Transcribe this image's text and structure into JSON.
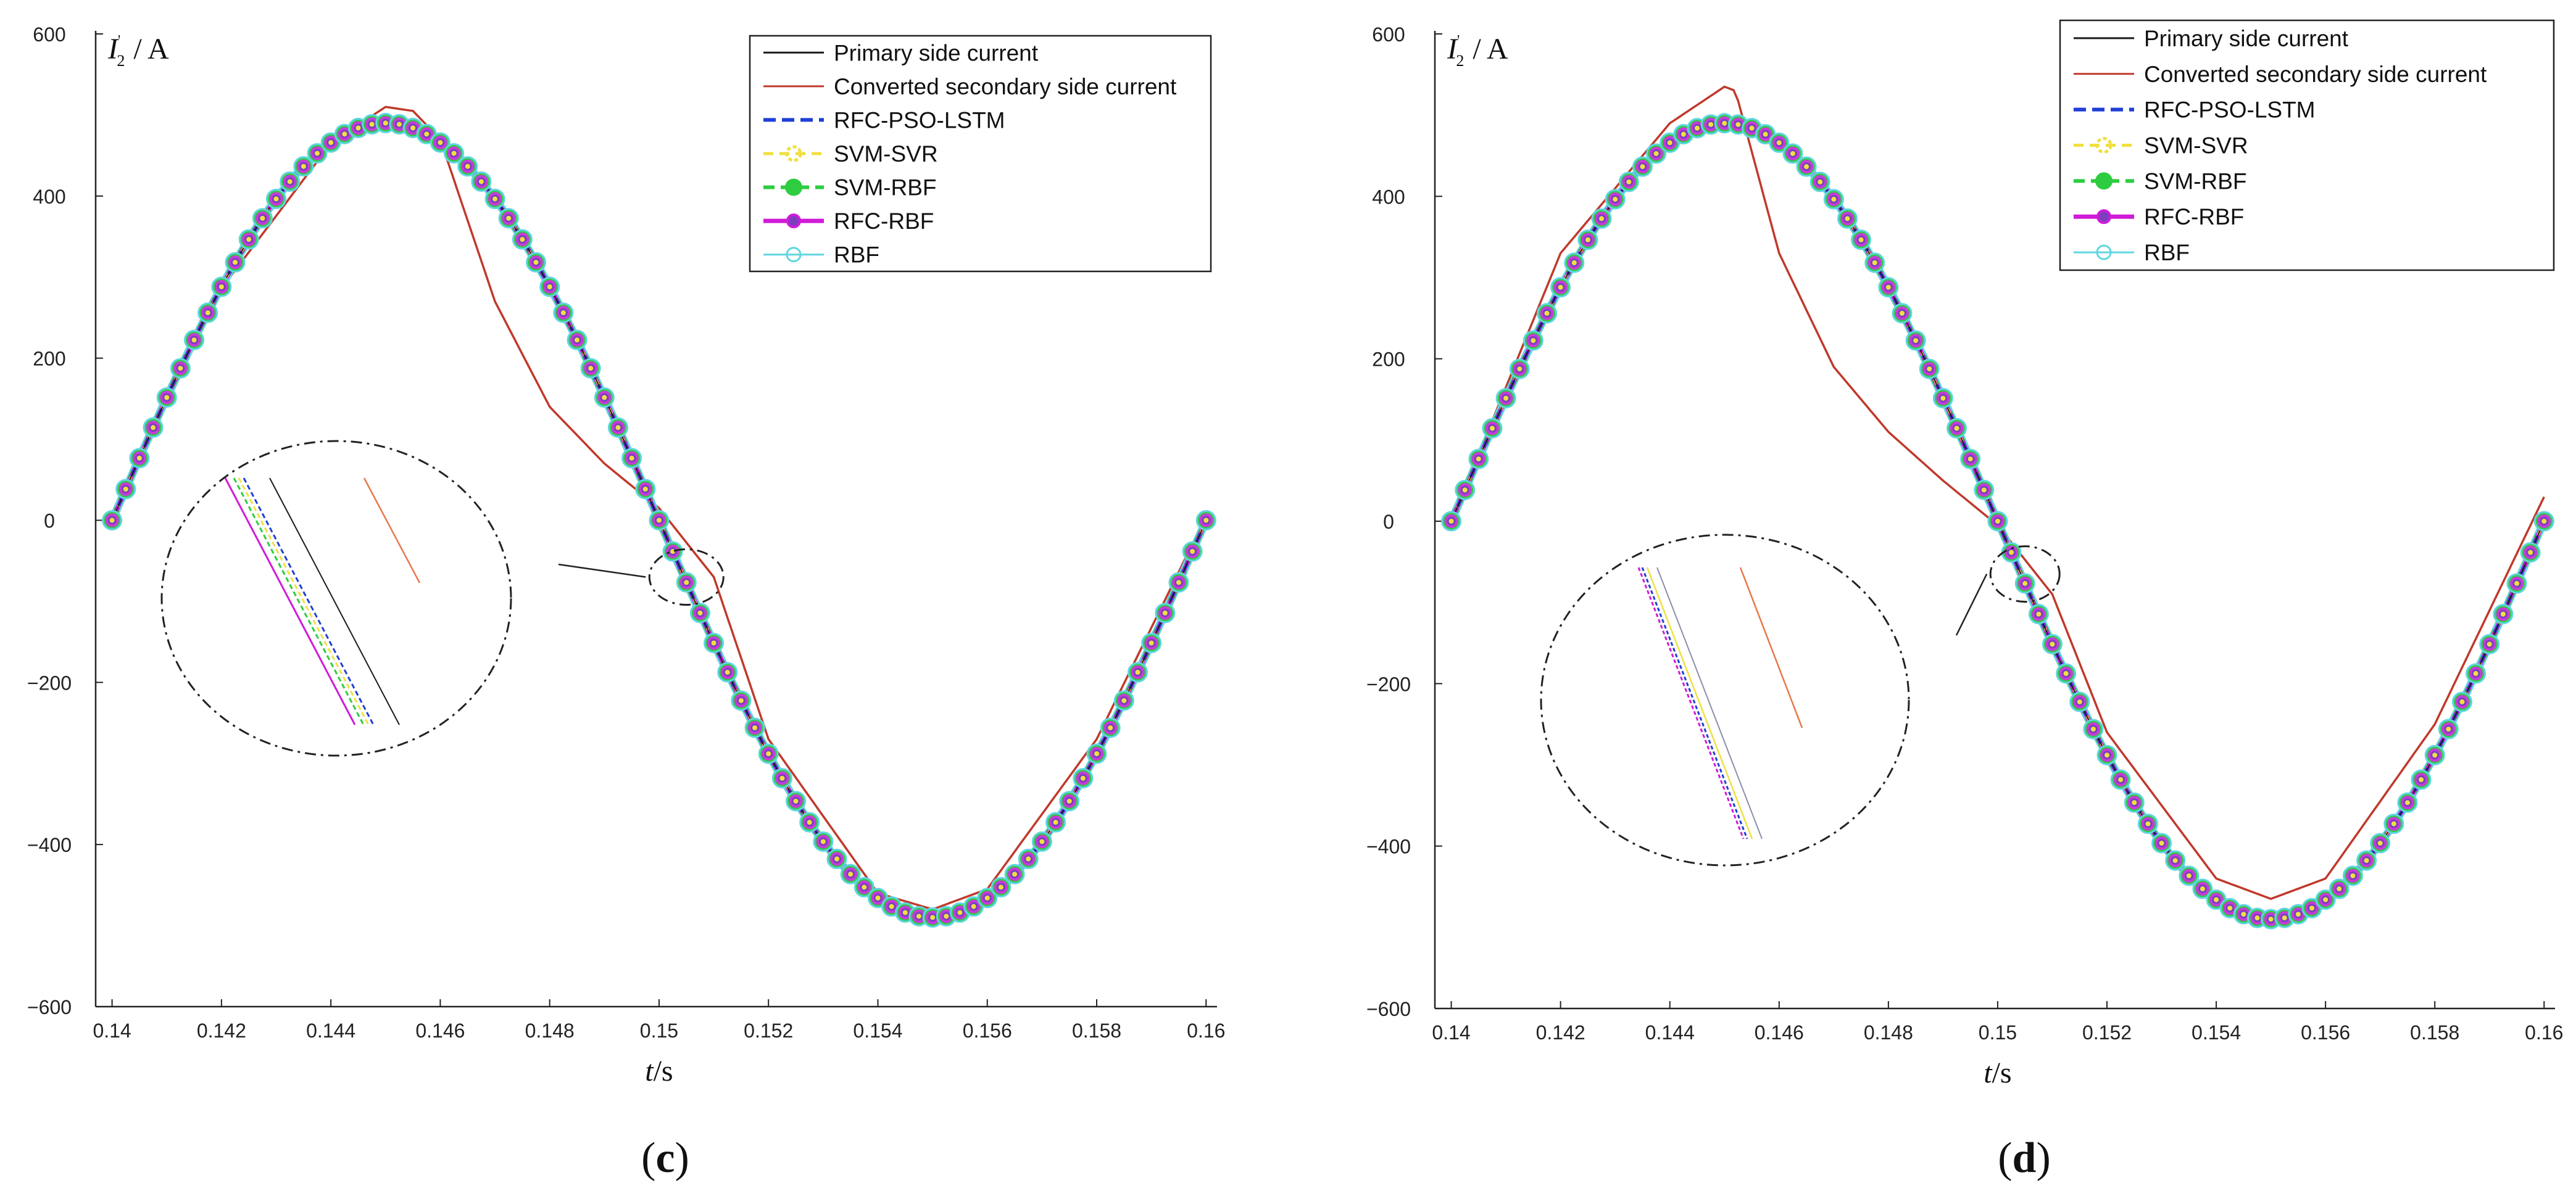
{
  "figure": {
    "panels": [
      {
        "label_open": "(",
        "label_letter": "c",
        "label_close": ")"
      },
      {
        "label_open": "(",
        "label_letter": "d",
        "label_close": ")"
      }
    ]
  },
  "chart_data": [
    {
      "type": "line",
      "panel": "c",
      "xlabel_var": "t",
      "xlabel_unit": "/s",
      "ylabel_var": "I",
      "ylabel_sub": "2",
      "ylabel_sup": "'",
      "ylabel_unit": "/ A",
      "xlim": [
        0.1397,
        0.1602
      ],
      "ylim": [
        -600,
        600
      ],
      "x_ticks": [
        0.14,
        0.142,
        0.144,
        0.146,
        0.148,
        0.15,
        0.152,
        0.154,
        0.156,
        0.158,
        0.16
      ],
      "x_tick_labels": [
        "0.14",
        "0.142",
        "0.144",
        "0.146",
        "0.148",
        "0.15",
        "0.152",
        "0.154",
        "0.156",
        "0.158",
        "0.16"
      ],
      "y_ticks": [
        -600,
        -400,
        -200,
        0,
        200,
        400,
        600
      ],
      "y_tick_labels": [
        "−600",
        "−400",
        "−200",
        "0",
        "200",
        "400",
        "600"
      ],
      "legend": [
        "Primary side current",
        "Converted secondary side current",
        "RFC-PSO-LSTM",
        "SVM-SVR",
        "SVM-RBF",
        "RFC-RBF",
        "RBF"
      ],
      "legend_position": "top-right",
      "series": [
        {
          "name": "Primary side current",
          "color": "#1a1a1a",
          "x": [
            0.14,
            0.1425,
            0.145,
            0.1475,
            0.15,
            0.1525,
            0.155,
            0.1575,
            0.16
          ],
          "values": [
            0,
            347,
            490,
            347,
            0,
            -347,
            -490,
            -347,
            0
          ]
        },
        {
          "name": "Converted secondary side current",
          "color": "#c0392b",
          "x": [
            0.14,
            0.142,
            0.144,
            0.145,
            0.1455,
            0.146,
            0.147,
            0.148,
            0.149,
            0.15,
            0.151,
            0.152,
            0.154,
            0.155,
            0.156,
            0.158,
            0.16
          ],
          "values": [
            0,
            286,
            465,
            510,
            505,
            470,
            270,
            140,
            70,
            15,
            -70,
            -270,
            -460,
            -480,
            -455,
            -270,
            5
          ]
        },
        {
          "name": "RFC-PSO-LSTM",
          "color": "#1f3fd6",
          "x": [
            0.14,
            0.1425,
            0.145,
            0.1475,
            0.15,
            0.1525,
            0.155,
            0.1575,
            0.16
          ],
          "values": [
            0,
            347,
            490,
            347,
            0,
            -347,
            -490,
            -347,
            0
          ]
        },
        {
          "name": "SVM-SVR",
          "color": "#f0e040",
          "x": [
            0.14,
            0.1425,
            0.145,
            0.1475,
            0.15,
            0.1525,
            0.155,
            0.1575,
            0.16
          ],
          "values": [
            0,
            347,
            490,
            347,
            0,
            -347,
            -490,
            -347,
            0
          ]
        },
        {
          "name": "SVM-RBF",
          "color": "#2ecc40",
          "x": [
            0.14,
            0.1425,
            0.145,
            0.1475,
            0.15,
            0.1525,
            0.155,
            0.1575,
            0.16
          ],
          "values": [
            0,
            347,
            490,
            347,
            0,
            -347,
            -490,
            -347,
            0
          ]
        },
        {
          "name": "RFC-RBF",
          "color": "#d01bd8",
          "x": [
            0.14,
            0.1425,
            0.145,
            0.1475,
            0.15,
            0.1525,
            0.155,
            0.1575,
            0.16
          ],
          "values": [
            0,
            347,
            490,
            347,
            0,
            -347,
            -490,
            -347,
            0
          ]
        },
        {
          "name": "RBF",
          "color": "#5fd6e0",
          "x": [
            0.14,
            0.1425,
            0.145,
            0.1475,
            0.15,
            0.1525,
            0.155,
            0.1575,
            0.16
          ],
          "values": [
            0,
            347,
            490,
            347,
            0,
            -347,
            -490,
            -347,
            0
          ]
        }
      ],
      "annotations": [
        {
          "type": "zoom-inset",
          "target": [
            0.1505,
            -70
          ],
          "inset_position": "left-middle"
        }
      ]
    },
    {
      "type": "line",
      "panel": "d",
      "xlabel_var": "t",
      "xlabel_unit": "/s",
      "ylabel_var": "I",
      "ylabel_sub": "2",
      "ylabel_sup": "'",
      "ylabel_unit": "/ A",
      "xlim": [
        0.1397,
        0.1602
      ],
      "ylim": [
        -600,
        600
      ],
      "x_ticks": [
        0.14,
        0.142,
        0.144,
        0.146,
        0.148,
        0.15,
        0.152,
        0.154,
        0.156,
        0.158,
        0.16
      ],
      "x_tick_labels": [
        "0.14",
        "0.142",
        "0.144",
        "0.146",
        "0.148",
        "0.15",
        "0.152",
        "0.154",
        "0.156",
        "0.158",
        "0.16"
      ],
      "y_ticks": [
        -600,
        -400,
        -200,
        0,
        200,
        400,
        600
      ],
      "y_tick_labels": [
        "−600",
        "−400",
        "−200",
        "0",
        "200",
        "400",
        "600"
      ],
      "legend": [
        "Primary side current",
        "Converted secondary side current",
        "RFC-PSO-LSTM",
        "SVM-SVR",
        "SVM-RBF",
        "RFC-RBF",
        "RBF"
      ],
      "legend_position": "top-right",
      "series": [
        {
          "name": "Primary side current",
          "color": "#1a1a1a",
          "x": [
            0.14,
            0.1425,
            0.145,
            0.1475,
            0.15,
            0.1525,
            0.155,
            0.1575,
            0.16
          ],
          "values": [
            0,
            347,
            490,
            347,
            0,
            -347,
            -490,
            -347,
            0
          ]
        },
        {
          "name": "Converted secondary side current",
          "color": "#c0392b",
          "x": [
            0.14,
            0.142,
            0.144,
            0.145,
            0.1452,
            0.146,
            0.147,
            0.148,
            0.149,
            0.15,
            0.151,
            0.152,
            0.154,
            0.155,
            0.156,
            0.158,
            0.16
          ],
          "values": [
            0,
            330,
            490,
            535,
            530,
            330,
            190,
            110,
            50,
            -5,
            -90,
            -260,
            -440,
            -465,
            -440,
            -250,
            30
          ]
        },
        {
          "name": "RFC-PSO-LSTM",
          "color": "#1f3fd6",
          "x": [
            0.14,
            0.1425,
            0.145,
            0.1475,
            0.15,
            0.1525,
            0.155,
            0.1575,
            0.16
          ],
          "values": [
            0,
            347,
            490,
            347,
            0,
            -347,
            -490,
            -347,
            0
          ]
        },
        {
          "name": "SVM-SVR",
          "color": "#f0e040",
          "x": [
            0.14,
            0.1425,
            0.145,
            0.1475,
            0.15,
            0.1525,
            0.155,
            0.1575,
            0.16
          ],
          "values": [
            0,
            347,
            490,
            347,
            0,
            -347,
            -490,
            -347,
            0
          ]
        },
        {
          "name": "SVM-RBF",
          "color": "#2ecc40",
          "x": [
            0.14,
            0.1425,
            0.145,
            0.1475,
            0.15,
            0.1525,
            0.155,
            0.1575,
            0.16
          ],
          "values": [
            0,
            347,
            490,
            347,
            0,
            -347,
            -490,
            -347,
            0
          ]
        },
        {
          "name": "RFC-RBF",
          "color": "#d01bd8",
          "x": [
            0.14,
            0.1425,
            0.145,
            0.1475,
            0.15,
            0.1525,
            0.155,
            0.1575,
            0.16
          ],
          "values": [
            0,
            347,
            490,
            347,
            0,
            -347,
            -490,
            -347,
            0
          ]
        },
        {
          "name": "RBF",
          "color": "#5fd6e0",
          "x": [
            0.14,
            0.1425,
            0.145,
            0.1475,
            0.15,
            0.1525,
            0.155,
            0.1575,
            0.16
          ],
          "values": [
            0,
            347,
            490,
            347,
            0,
            -347,
            -490,
            -347,
            0
          ]
        }
      ],
      "annotations": [
        {
          "type": "zoom-inset",
          "target": [
            0.1505,
            -65
          ],
          "inset_position": "left-lower"
        }
      ]
    }
  ]
}
